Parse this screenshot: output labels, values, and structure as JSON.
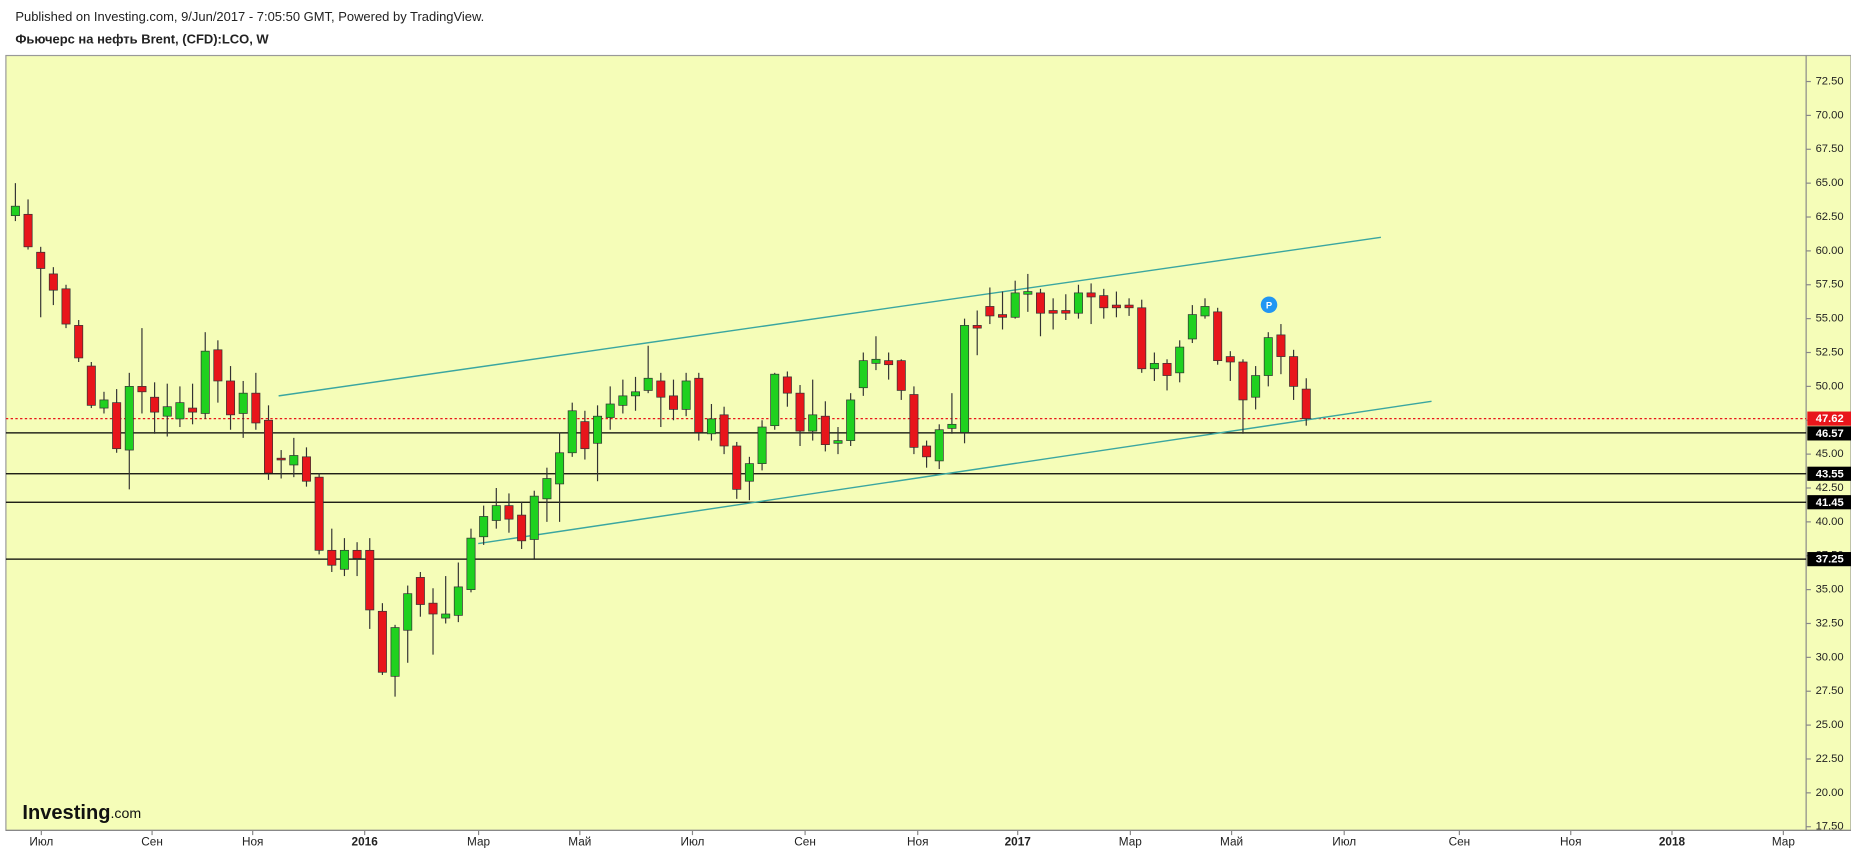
{
  "header": {
    "published": "Published on Investing.com, 9/Jun/2017 - 7:05:50 GMT, Powered by TradingView."
  },
  "chart_data": {
    "type": "candlestick",
    "title": "Фьючерс на нефть Brent, (CFD):LCO, W",
    "colors": {
      "up": "#1fd11f",
      "down": "#e8151b",
      "level": "#000000",
      "last": "#e8151b",
      "trend": "#3aa6a0",
      "background": "#f5fdb8"
    },
    "grid": false,
    "open": [
      62.6,
      62.7,
      59.9,
      58.3,
      57.2,
      54.5,
      51.5,
      48.4,
      48.8,
      45.3,
      50.0,
      49.2,
      47.8,
      47.6,
      48.4,
      48.0,
      52.7,
      50.4,
      48.0,
      49.5,
      47.5,
      44.7,
      44.2,
      44.8,
      43.3,
      37.9,
      36.5,
      37.9,
      37.9,
      33.4,
      28.6,
      32.0,
      35.9,
      34.0,
      32.9,
      33.1,
      35.0,
      38.9,
      40.1,
      41.2,
      40.5,
      38.7,
      41.7,
      42.8,
      45.1,
      47.4,
      45.8,
      47.7,
      48.6,
      49.3,
      49.7,
      50.4,
      49.3,
      48.3,
      50.6,
      46.5,
      47.9,
      45.6,
      43.0,
      44.3,
      47.1,
      50.7,
      49.5,
      46.7,
      47.8,
      45.8,
      46.0,
      49.9,
      51.7,
      51.9,
      51.9,
      49.4,
      45.6,
      44.5,
      46.9,
      46.6,
      54.5,
      55.9,
      55.3,
      55.1,
      56.8,
      56.9,
      55.6,
      55.6,
      55.4,
      56.9,
      56.7,
      56.0,
      56.0,
      55.8,
      51.3,
      51.7,
      51.0,
      53.5,
      55.2,
      55.5,
      52.2,
      51.8,
      49.2,
      50.8,
      53.8,
      52.2,
      49.8
    ],
    "high": [
      65,
      63.8,
      60.3,
      58.8,
      57.5,
      54.9,
      51.8,
      49.6,
      49.8,
      51.0,
      54.3,
      50.3,
      50.2,
      50.0,
      50.2,
      54.0,
      53.4,
      51.5,
      50.4,
      51.0,
      48.6,
      45.3,
      46.2,
      45.5,
      43.6,
      39.5,
      38.8,
      38.5,
      38.8,
      34.0,
      32.4,
      35.3,
      36.3,
      35.1,
      36.0,
      37.0,
      39.5,
      41.2,
      42.5,
      42.1,
      41.5,
      42.3,
      44.0,
      46.6,
      48.8,
      48.2,
      48.6,
      50.0,
      50.5,
      50.7,
      53.0,
      51.0,
      50.5,
      51.0,
      51.0,
      48.7,
      48.5,
      45.9,
      44.8,
      47.5,
      51.0,
      51.1,
      50.1,
      50.5,
      48.9,
      47.0,
      49.5,
      52.5,
      53.7,
      52.5,
      52.0,
      50.0,
      46.0,
      47.2,
      49.5,
      55.0,
      55.6,
      57.3,
      57.0,
      57.8,
      58.3,
      57.2,
      56.5,
      56.8,
      57.5,
      57.6,
      57.2,
      57.0,
      56.5,
      56.4,
      52.5,
      52.0,
      53.4,
      56.0,
      56.5,
      55.8,
      52.6,
      52.0,
      51.5,
      54.0,
      54.6,
      52.7,
      50.6
    ],
    "low": [
      62.2,
      60.1,
      55.1,
      56.0,
      54.3,
      51.8,
      48.4,
      48.0,
      45.1,
      42.4,
      48.0,
      46.5,
      46.3,
      47.0,
      47.2,
      47.6,
      48.8,
      46.8,
      46.2,
      46.8,
      43.1,
      43.2,
      43.3,
      42.6,
      37.6,
      36.3,
      36.0,
      36.0,
      32.1,
      28.7,
      27.1,
      29.6,
      33.0,
      30.2,
      32.5,
      32.6,
      34.8,
      38.3,
      39.5,
      39.2,
      38.0,
      37.3,
      40.0,
      40.0,
      44.8,
      44.6,
      43.0,
      46.8,
      48.0,
      48.2,
      49.5,
      47.0,
      47.5,
      47.8,
      46.0,
      46.0,
      45.0,
      41.7,
      41.6,
      43.8,
      46.8,
      48.5,
      45.6,
      46.0,
      45.2,
      45.0,
      45.6,
      49.3,
      51.2,
      50.5,
      49.0,
      45.0,
      44.0,
      43.9,
      46.5,
      45.8,
      52.3,
      54.6,
      54.2,
      55.0,
      55.5,
      53.7,
      54.2,
      54.9,
      55.0,
      54.6,
      55.0,
      55.1,
      55.2,
      51.0,
      50.4,
      49.7,
      50.3,
      53.2,
      55.0,
      51.6,
      50.4,
      46.5,
      48.3,
      50.0,
      50.9,
      49.0,
      47.1
    ],
    "close": [
      63.3,
      60.3,
      58.7,
      57.1,
      54.6,
      52.1,
      48.6,
      49.0,
      45.4,
      50.0,
      49.6,
      48.1,
      48.5,
      48.8,
      48.1,
      52.6,
      50.4,
      47.9,
      49.5,
      47.3,
      43.6,
      44.6,
      44.9,
      43.0,
      37.9,
      36.8,
      37.9,
      37.3,
      33.5,
      28.9,
      32.2,
      34.7,
      33.9,
      33.2,
      33.2,
      35.2,
      38.8,
      40.4,
      41.2,
      40.2,
      38.6,
      41.9,
      43.2,
      45.1,
      48.2,
      45.4,
      47.8,
      48.7,
      49.3,
      49.6,
      50.6,
      49.2,
      48.3,
      50.4,
      46.6,
      47.6,
      45.6,
      42.4,
      44.3,
      47.0,
      50.9,
      49.5,
      46.7,
      47.9,
      45.7,
      46.0,
      49.0,
      51.9,
      52.0,
      51.6,
      49.7,
      45.5,
      44.8,
      46.8,
      47.2,
      54.5,
      54.3,
      55.2,
      55.1,
      56.9,
      57.0,
      55.4,
      55.4,
      55.4,
      56.9,
      56.6,
      55.8,
      55.8,
      55.8,
      51.3,
      51.7,
      50.8,
      52.9,
      55.3,
      55.9,
      51.9,
      51.8,
      49.0,
      50.8,
      53.6,
      52.2,
      50.0,
      47.62
    ],
    "xlim": [
      -0.75,
      141.5
    ],
    "xticks": [
      {
        "value": 2.05,
        "label": "Июл"
      },
      {
        "value": 10.8,
        "label": "Сен"
      },
      {
        "value": 18.75,
        "label": "Ноя"
      },
      {
        "value": 27.6,
        "label": "2016"
      },
      {
        "value": 36.6,
        "label": "Мар"
      },
      {
        "value": 44.6,
        "label": "Май"
      },
      {
        "value": 53.5,
        "label": "Июл"
      },
      {
        "value": 62.4,
        "label": "Сен"
      },
      {
        "value": 71.3,
        "label": "Ноя"
      },
      {
        "value": 79.2,
        "label": "2017"
      },
      {
        "value": 88.1,
        "label": "Мар"
      },
      {
        "value": 96.1,
        "label": "Май"
      },
      {
        "value": 105.0,
        "label": "Июл"
      },
      {
        "value": 114.1,
        "label": "Сен"
      },
      {
        "value": 122.9,
        "label": "Ноя"
      },
      {
        "value": 130.9,
        "label": "2018"
      },
      {
        "value": 139.7,
        "label": "Мар"
      }
    ],
    "ylim": [
      17.23,
      74.42
    ],
    "yticks": [
      {
        "value": 17.5,
        "label": "17.50"
      },
      {
        "value": 20,
        "label": "20.00"
      },
      {
        "value": 22.5,
        "label": "22.50"
      },
      {
        "value": 25,
        "label": "25.00"
      },
      {
        "value": 27.5,
        "label": "27.50"
      },
      {
        "value": 30,
        "label": "30.00"
      },
      {
        "value": 32.5,
        "label": "32.50"
      },
      {
        "value": 35,
        "label": "35.00"
      },
      {
        "value": 37.5,
        "label": "37.50"
      },
      {
        "value": 40,
        "label": "40.00"
      },
      {
        "value": 42.5,
        "label": "42.50"
      },
      {
        "value": 45,
        "label": "45.00"
      },
      {
        "value": 47.5,
        "label": "47.50"
      },
      {
        "value": 50,
        "label": "50.00"
      },
      {
        "value": 52.5,
        "label": "52.50"
      },
      {
        "value": 55,
        "label": "55.00"
      },
      {
        "value": 57.5,
        "label": "57.50"
      },
      {
        "value": 60,
        "label": "60.00"
      },
      {
        "value": 62.5,
        "label": "62.50"
      },
      {
        "value": 65,
        "label": "65.00"
      },
      {
        "value": 67.5,
        "label": "67.50"
      },
      {
        "value": 70,
        "label": "70.00"
      },
      {
        "value": 72.5,
        "label": "72.50"
      }
    ],
    "last": 47.62,
    "levels": [
      46.57,
      43.55,
      41.45,
      37.25
    ],
    "trendlines": [
      [
        [
          20.8,
          49.3
        ],
        [
          107.9,
          61.0
        ]
      ],
      [
        [
          36.57,
          38.4
        ],
        [
          111.9,
          48.9
        ]
      ]
    ],
    "marker": "P",
    "logo": {
      "brand": "Investing",
      "suffix": ".com"
    }
  }
}
